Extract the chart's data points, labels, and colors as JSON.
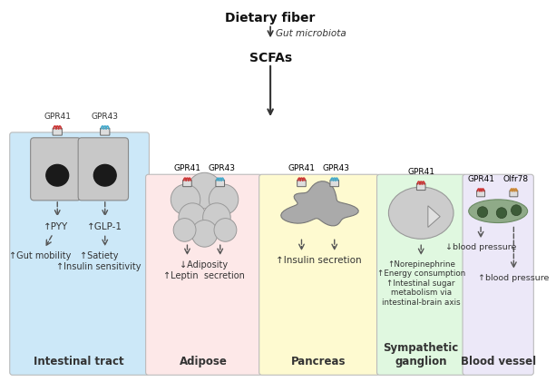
{
  "title": "Dietary fiber",
  "subtitle": "SCFAs",
  "gut_microbiota_label": "Gut microbiota",
  "background_color": "#ffffff",
  "panel_colors": {
    "intestinal": "#cce8f8",
    "adipose": "#fde8e8",
    "pancreas": "#fefad0",
    "sympathetic": "#e0f8e0",
    "blood_vessel": "#ece8f8"
  }
}
